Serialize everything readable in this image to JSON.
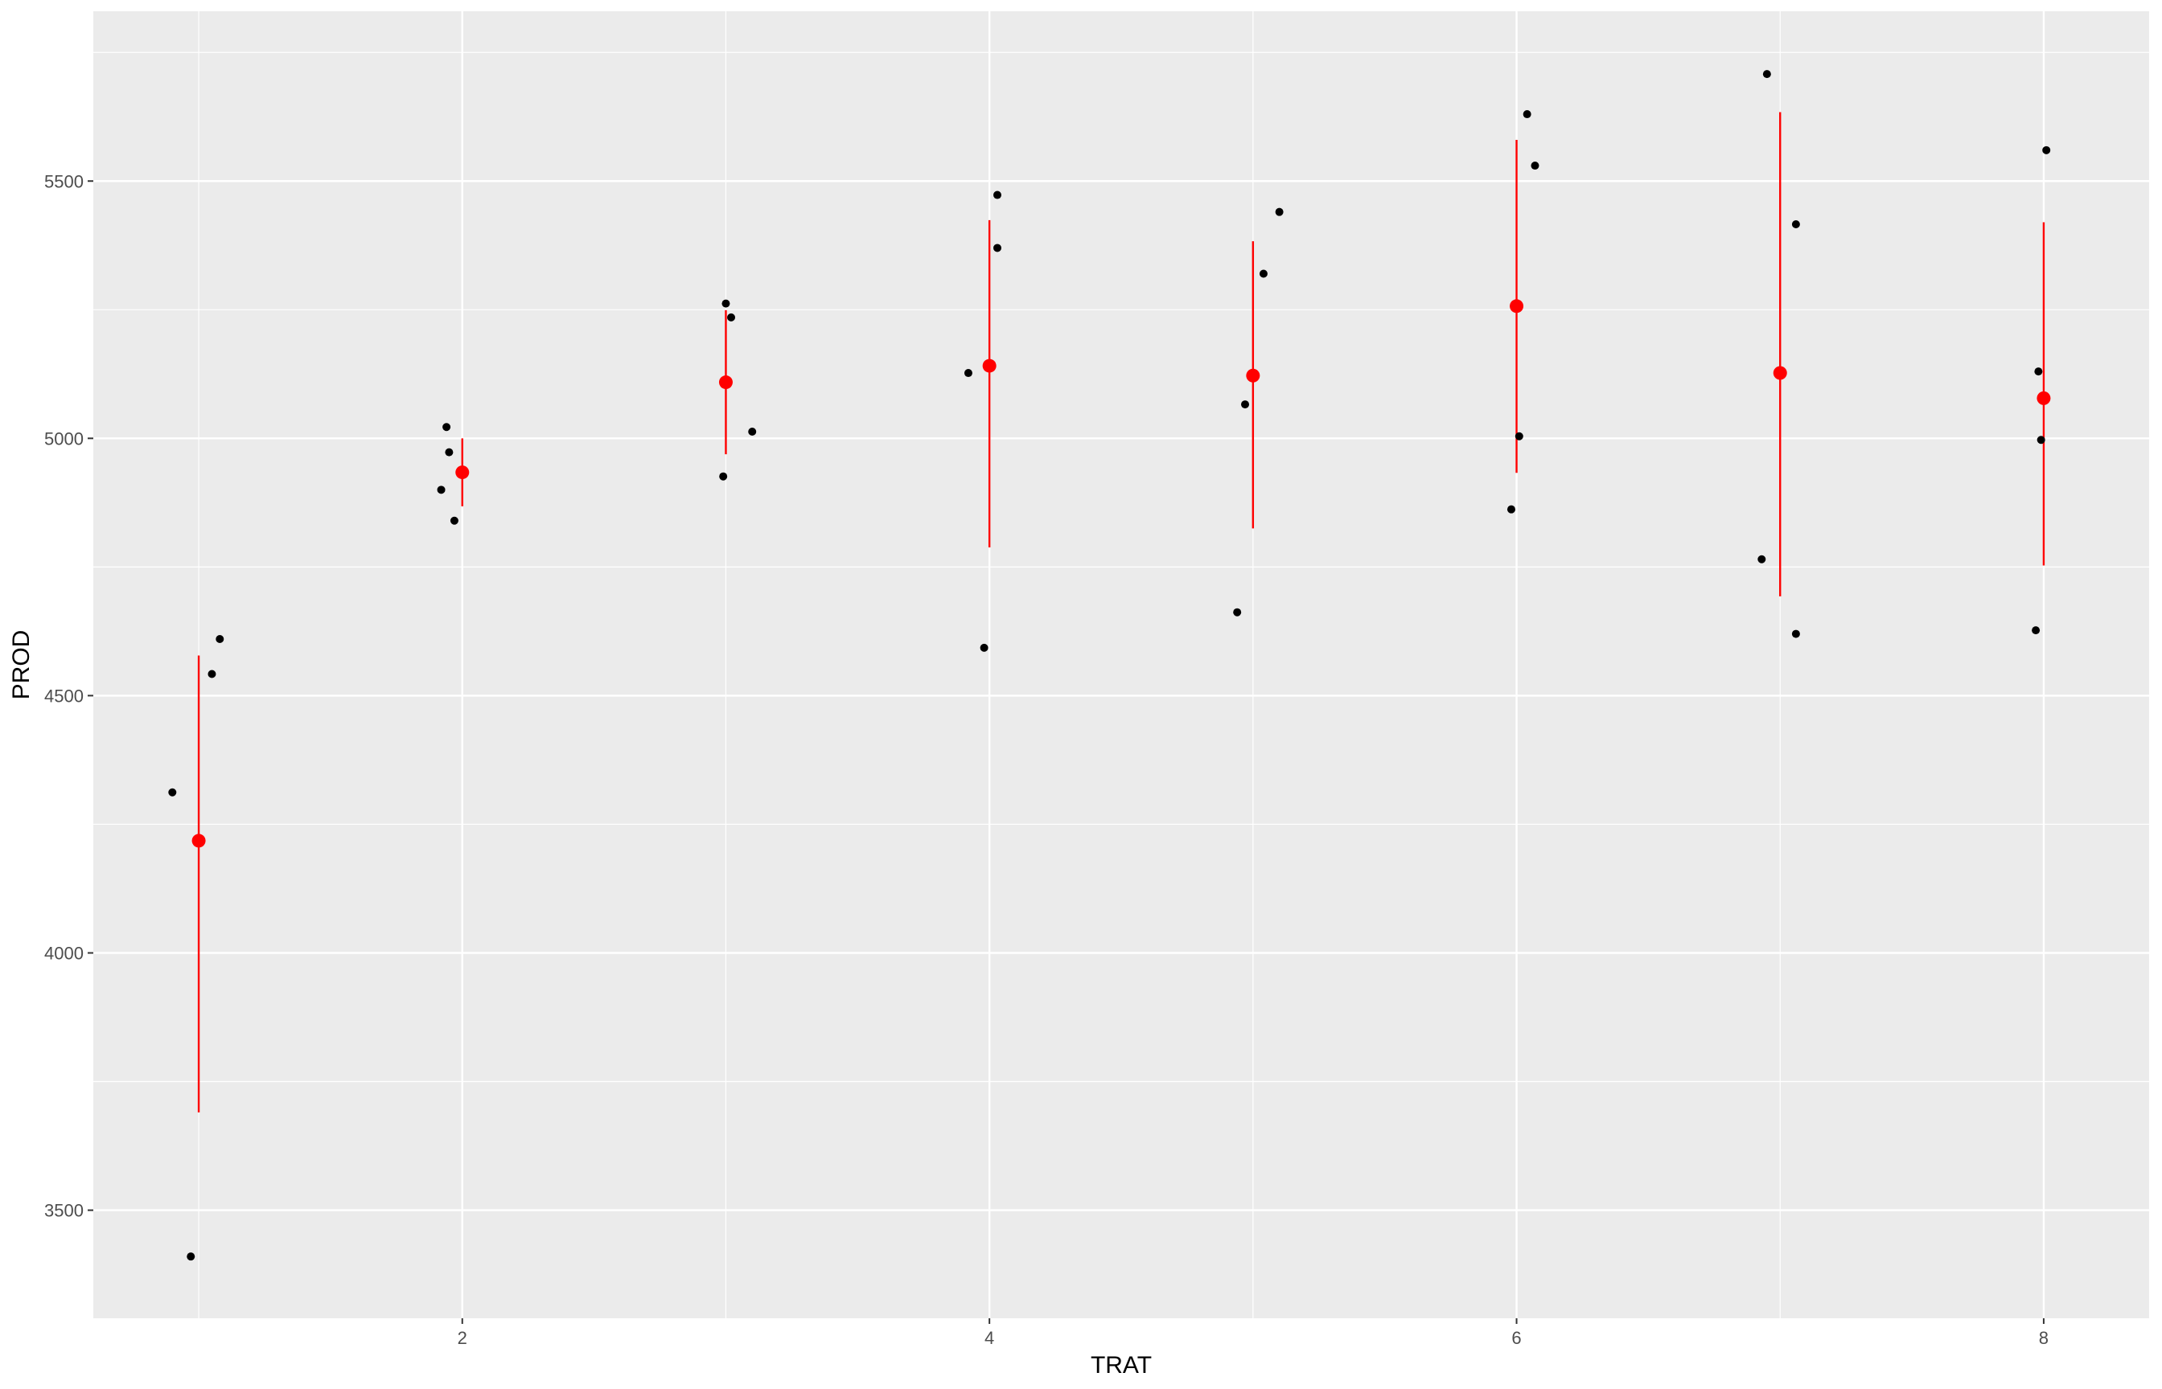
{
  "chart_data": {
    "type": "scatter",
    "xlabel": "TRAT",
    "ylabel": "PROD",
    "xlim": [
      0.6,
      8.4
    ],
    "ylim": [
      3290,
      5830
    ],
    "x_ticks": [
      2,
      4,
      6,
      8
    ],
    "x_minor_ticks": [
      1,
      3,
      5,
      7
    ],
    "y_ticks": [
      3500,
      4000,
      4500,
      5000,
      5500
    ],
    "y_minor_ticks": [
      3750,
      4250,
      4750,
      5250,
      5750
    ],
    "grid": true,
    "colors": {
      "panel": "#ebebeb",
      "grid": "#ffffff",
      "points": "#000000",
      "summary": "#ff0000"
    },
    "points": [
      {
        "x": 0.9,
        "y": 4312
      },
      {
        "x": 0.97,
        "y": 3410
      },
      {
        "x": 1.05,
        "y": 4542
      },
      {
        "x": 1.08,
        "y": 4610
      },
      {
        "x": 1.92,
        "y": 4900
      },
      {
        "x": 1.94,
        "y": 5022
      },
      {
        "x": 1.95,
        "y": 4973
      },
      {
        "x": 1.97,
        "y": 4840
      },
      {
        "x": 2.99,
        "y": 4926
      },
      {
        "x": 3.0,
        "y": 5262
      },
      {
        "x": 3.02,
        "y": 5235
      },
      {
        "x": 3.1,
        "y": 5013
      },
      {
        "x": 3.92,
        "y": 5127
      },
      {
        "x": 3.98,
        "y": 4593
      },
      {
        "x": 4.03,
        "y": 5370
      },
      {
        "x": 4.03,
        "y": 5473
      },
      {
        "x": 4.94,
        "y": 4662
      },
      {
        "x": 4.97,
        "y": 5066
      },
      {
        "x": 5.04,
        "y": 5320
      },
      {
        "x": 5.1,
        "y": 5440
      },
      {
        "x": 5.98,
        "y": 4862
      },
      {
        "x": 6.01,
        "y": 5004
      },
      {
        "x": 6.04,
        "y": 5630
      },
      {
        "x": 6.07,
        "y": 5530
      },
      {
        "x": 6.93,
        "y": 4765
      },
      {
        "x": 6.95,
        "y": 5708
      },
      {
        "x": 7.06,
        "y": 5416
      },
      {
        "x": 7.06,
        "y": 4620
      },
      {
        "x": 7.97,
        "y": 4627
      },
      {
        "x": 7.98,
        "y": 5130
      },
      {
        "x": 7.99,
        "y": 4997
      },
      {
        "x": 8.01,
        "y": 5560
      }
    ],
    "summary": [
      {
        "x": 1,
        "mean": 4218,
        "lower": 3690,
        "upper": 4578
      },
      {
        "x": 2,
        "mean": 4934,
        "lower": 4868,
        "upper": 5000
      },
      {
        "x": 3,
        "mean": 5109,
        "lower": 4969,
        "upper": 5249
      },
      {
        "x": 4,
        "mean": 5141,
        "lower": 4788,
        "upper": 5424
      },
      {
        "x": 5,
        "mean": 5122,
        "lower": 4825,
        "upper": 5383
      },
      {
        "x": 6,
        "mean": 5257,
        "lower": 4933,
        "upper": 5580
      },
      {
        "x": 7,
        "mean": 5127,
        "lower": 4693,
        "upper": 5634
      },
      {
        "x": 8,
        "mean": 5078,
        "lower": 4753,
        "upper": 5420
      }
    ]
  }
}
